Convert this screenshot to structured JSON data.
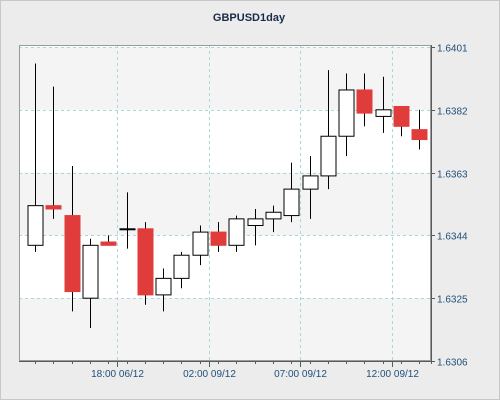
{
  "chart_data": {
    "type": "candlestick",
    "title": "GBPUSD1day",
    "y_axis": {
      "position": "right",
      "range": [
        1.6306,
        1.6401
      ],
      "ticks": [
        "1.6401",
        "1.6382",
        "1.6363",
        "1.6344",
        "1.6325",
        "1.6306"
      ]
    },
    "x_axis": {
      "ticks": [
        {
          "label": "18:00 06/12",
          "candle_index": 4.5
        },
        {
          "label": "02:00 09/12",
          "candle_index": 9.5
        },
        {
          "label": "07:00 09/12",
          "candle_index": 14.5
        },
        {
          "label": "12:00 09/12",
          "candle_index": 19.5
        }
      ]
    },
    "grid": true,
    "colors": {
      "bullish_body": "#ffffff",
      "bearish_body": "#e03c3c",
      "candle_outline": "#000000",
      "wick": "#000000",
      "grid": "#a9d8dc",
      "title": "#1a2a4a",
      "tick_labels": "#1f4f7a"
    },
    "candles": [
      {
        "open": 1.6341,
        "high": 1.6396,
        "low": 1.6339,
        "close": 1.6353
      },
      {
        "open": 1.6353,
        "high": 1.6389,
        "low": 1.6349,
        "close": 1.6352
      },
      {
        "open": 1.635,
        "high": 1.6365,
        "low": 1.6321,
        "close": 1.6327
      },
      {
        "open": 1.6325,
        "high": 1.6343,
        "low": 1.6316,
        "close": 1.6341
      },
      {
        "open": 1.6342,
        "high": 1.6344,
        "low": 1.6341,
        "close": 1.6341
      },
      {
        "open": 1.6346,
        "high": 1.6357,
        "low": 1.634,
        "close": 1.6346
      },
      {
        "open": 1.6346,
        "high": 1.6348,
        "low": 1.6323,
        "close": 1.6326
      },
      {
        "open": 1.6326,
        "high": 1.6334,
        "low": 1.6321,
        "close": 1.6331
      },
      {
        "open": 1.6331,
        "high": 1.6339,
        "low": 1.6328,
        "close": 1.6338
      },
      {
        "open": 1.6338,
        "high": 1.6347,
        "low": 1.6335,
        "close": 1.6345
      },
      {
        "open": 1.6345,
        "high": 1.6348,
        "low": 1.6339,
        "close": 1.6341
      },
      {
        "open": 1.6341,
        "high": 1.635,
        "low": 1.6339,
        "close": 1.6349
      },
      {
        "open": 1.6347,
        "high": 1.6352,
        "low": 1.6341,
        "close": 1.6349
      },
      {
        "open": 1.6349,
        "high": 1.6353,
        "low": 1.6345,
        "close": 1.6351
      },
      {
        "open": 1.635,
        "high": 1.6366,
        "low": 1.6348,
        "close": 1.6358
      },
      {
        "open": 1.6358,
        "high": 1.6368,
        "low": 1.6349,
        "close": 1.6362
      },
      {
        "open": 1.6362,
        "high": 1.6394,
        "low": 1.6358,
        "close": 1.6374
      },
      {
        "open": 1.6374,
        "high": 1.6393,
        "low": 1.6368,
        "close": 1.6388
      },
      {
        "open": 1.6388,
        "high": 1.6393,
        "low": 1.6377,
        "close": 1.6381
      },
      {
        "open": 1.638,
        "high": 1.6392,
        "low": 1.6375,
        "close": 1.6382
      },
      {
        "open": 1.6383,
        "high": 1.6383,
        "low": 1.6374,
        "close": 1.6377
      },
      {
        "open": 1.6376,
        "high": 1.6382,
        "low": 1.637,
        "close": 1.6373
      }
    ]
  }
}
